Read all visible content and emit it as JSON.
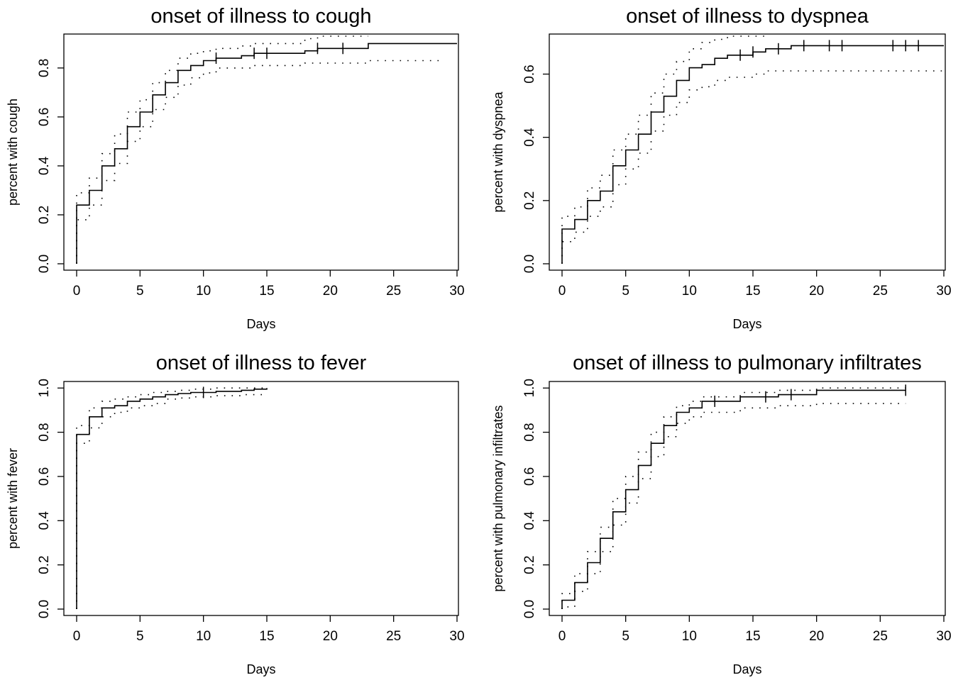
{
  "chart_data": [
    {
      "type": "line",
      "title": "onset of illness to cough",
      "xlabel": "Days",
      "ylabel": "percent with cough",
      "xlim": [
        0,
        30
      ],
      "ylim": [
        0,
        0.93
      ],
      "xticks": [
        "0",
        "5",
        "10",
        "15",
        "20",
        "25",
        "30"
      ],
      "yticks": [
        "0.0",
        "0.2",
        "0.4",
        "0.6",
        "0.8"
      ],
      "grid": false,
      "step": true,
      "series": [
        {
          "role": "estimate",
          "x": [
            0,
            0,
            1,
            2,
            3,
            4,
            5,
            6,
            7,
            8,
            9,
            10,
            11,
            13,
            14,
            18,
            19,
            23,
            30
          ],
          "y": [
            0,
            0.24,
            0.3,
            0.4,
            0.47,
            0.56,
            0.62,
            0.69,
            0.74,
            0.79,
            0.81,
            0.83,
            0.84,
            0.85,
            0.86,
            0.87,
            0.88,
            0.9,
            0.9
          ],
          "censor_x": [
            11,
            14,
            15,
            19,
            21
          ]
        },
        {
          "role": "upper",
          "x": [
            0,
            0,
            1,
            2,
            3,
            4,
            5,
            6,
            7,
            8,
            9,
            10,
            11,
            13,
            14,
            18,
            19,
            23
          ],
          "y": [
            0,
            0.29,
            0.35,
            0.45,
            0.53,
            0.62,
            0.67,
            0.74,
            0.79,
            0.84,
            0.86,
            0.87,
            0.88,
            0.89,
            0.9,
            0.92,
            0.93,
            0.93
          ]
        },
        {
          "role": "lower",
          "x": [
            0,
            0,
            1,
            2,
            3,
            4,
            5,
            6,
            7,
            8,
            9,
            10,
            11,
            13,
            14,
            18,
            19,
            23,
            29
          ],
          "y": [
            0,
            0.18,
            0.24,
            0.34,
            0.41,
            0.5,
            0.56,
            0.63,
            0.68,
            0.73,
            0.76,
            0.78,
            0.8,
            0.8,
            0.81,
            0.82,
            0.82,
            0.83,
            0.83
          ]
        }
      ]
    },
    {
      "type": "line",
      "title": "onset of illness to dyspnea",
      "xlabel": "Days",
      "ylabel": "percent with dyspnea",
      "xlim": [
        0,
        30
      ],
      "ylim": [
        0,
        0.72
      ],
      "xticks": [
        "0",
        "5",
        "10",
        "15",
        "20",
        "25",
        "30"
      ],
      "yticks": [
        "0.0",
        "0.2",
        "0.4",
        "0.6"
      ],
      "grid": false,
      "step": true,
      "series": [
        {
          "role": "estimate",
          "x": [
            0,
            0,
            1,
            2,
            3,
            4,
            5,
            6,
            7,
            8,
            9,
            10,
            11,
            12,
            13,
            15,
            16,
            17,
            18,
            19,
            30
          ],
          "y": [
            0,
            0.11,
            0.14,
            0.2,
            0.23,
            0.31,
            0.36,
            0.41,
            0.48,
            0.53,
            0.58,
            0.62,
            0.63,
            0.65,
            0.66,
            0.67,
            0.68,
            0.68,
            0.69,
            0.69,
            0.69
          ],
          "censor_x": [
            14,
            15,
            17,
            19,
            21,
            22,
            26,
            27,
            28
          ]
        },
        {
          "role": "upper",
          "x": [
            0,
            0,
            1,
            2,
            3,
            4,
            5,
            6,
            7,
            8,
            9,
            10,
            11,
            12,
            13,
            16
          ],
          "y": [
            0,
            0.15,
            0.18,
            0.24,
            0.28,
            0.36,
            0.41,
            0.47,
            0.54,
            0.6,
            0.64,
            0.68,
            0.7,
            0.71,
            0.72,
            0.72
          ]
        },
        {
          "role": "lower",
          "x": [
            0,
            0,
            1,
            2,
            3,
            4,
            5,
            6,
            7,
            8,
            9,
            10,
            11,
            12,
            13,
            15,
            16,
            30
          ],
          "y": [
            0,
            0.07,
            0.1,
            0.15,
            0.18,
            0.25,
            0.3,
            0.35,
            0.42,
            0.47,
            0.51,
            0.55,
            0.56,
            0.58,
            0.59,
            0.6,
            0.61,
            0.61
          ]
        }
      ]
    },
    {
      "type": "line",
      "title": "onset of illness to fever",
      "xlabel": "Days",
      "ylabel": "percent with fever",
      "xlim": [
        0,
        30
      ],
      "ylim": [
        0,
        1.02
      ],
      "xticks": [
        "0",
        "5",
        "10",
        "15",
        "20",
        "25",
        "30"
      ],
      "yticks": [
        "0.0",
        "0.2",
        "0.4",
        "0.6",
        "0.8",
        "1.0"
      ],
      "grid": false,
      "step": true,
      "series": [
        {
          "role": "estimate",
          "x": [
            0,
            0,
            1,
            2,
            3,
            4,
            5,
            6,
            7,
            8,
            9,
            11,
            13,
            14,
            15
          ],
          "y": [
            0,
            0.79,
            0.87,
            0.91,
            0.92,
            0.94,
            0.95,
            0.96,
            0.97,
            0.975,
            0.98,
            0.985,
            0.99,
            0.995,
            1.0
          ],
          "censor_x": [
            10
          ]
        },
        {
          "role": "upper",
          "x": [
            0,
            0,
            1,
            2,
            3,
            4,
            5,
            6,
            7,
            8,
            9,
            11,
            13,
            15
          ],
          "y": [
            0,
            0.83,
            0.91,
            0.94,
            0.95,
            0.96,
            0.97,
            0.98,
            0.985,
            0.99,
            0.995,
            1.0,
            1.0,
            1.0
          ]
        },
        {
          "role": "lower",
          "x": [
            0,
            0,
            1,
            2,
            3,
            4,
            5,
            6,
            7,
            8,
            9,
            11,
            13,
            15
          ],
          "y": [
            0,
            0.75,
            0.82,
            0.87,
            0.89,
            0.91,
            0.92,
            0.93,
            0.95,
            0.955,
            0.96,
            0.965,
            0.97,
            0.97
          ]
        }
      ]
    },
    {
      "type": "line",
      "title": "onset of illness to pulmonary infiltrates",
      "xlabel": "Days",
      "ylabel": "percent with pulmonary infiltrates",
      "xlim": [
        0,
        30
      ],
      "ylim": [
        0,
        1.02
      ],
      "xticks": [
        "0",
        "5",
        "10",
        "15",
        "20",
        "25",
        "30"
      ],
      "yticks": [
        "0.0",
        "0.2",
        "0.4",
        "0.6",
        "0.8",
        "1.0"
      ],
      "grid": false,
      "step": true,
      "series": [
        {
          "role": "estimate",
          "x": [
            0,
            0,
            1,
            2,
            3,
            4,
            5,
            6,
            7,
            8,
            9,
            10,
            11,
            14,
            17,
            20,
            27
          ],
          "y": [
            0,
            0.04,
            0.12,
            0.21,
            0.32,
            0.44,
            0.54,
            0.65,
            0.75,
            0.83,
            0.89,
            0.91,
            0.94,
            0.96,
            0.97,
            0.99,
            0.99
          ],
          "censor_x": [
            12,
            16,
            18,
            27
          ]
        },
        {
          "role": "upper",
          "x": [
            0,
            0,
            1,
            2,
            3,
            4,
            5,
            6,
            7,
            8,
            9,
            10,
            11,
            14,
            17,
            20,
            27
          ],
          "y": [
            0,
            0.07,
            0.16,
            0.26,
            0.37,
            0.5,
            0.6,
            0.71,
            0.8,
            0.87,
            0.92,
            0.94,
            0.96,
            0.98,
            0.99,
            1.0,
            1.0
          ]
        },
        {
          "role": "lower",
          "x": [
            0,
            0,
            1,
            2,
            3,
            4,
            5,
            6,
            7,
            8,
            9,
            10,
            11,
            14,
            17,
            20,
            27
          ],
          "y": [
            0,
            0.01,
            0.08,
            0.16,
            0.26,
            0.38,
            0.48,
            0.59,
            0.69,
            0.78,
            0.84,
            0.87,
            0.89,
            0.91,
            0.92,
            0.93,
            0.93
          ]
        }
      ]
    }
  ]
}
